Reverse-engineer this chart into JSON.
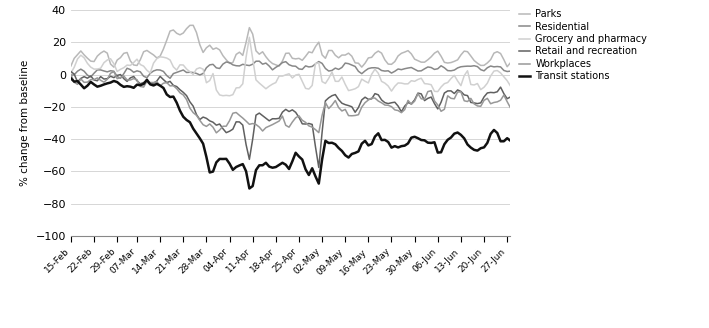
{
  "ylabel": "% change from baseline",
  "ylim": [
    -100,
    40
  ],
  "yticks": [
    -100,
    -80,
    -60,
    -40,
    -20,
    0,
    20,
    40
  ],
  "background_color": "#ffffff",
  "grid_color": "#d0d0d0",
  "series": {
    "Parks": {
      "color": "#b8b8b8",
      "linewidth": 1.1,
      "zorder": 3
    },
    "Residential": {
      "color": "#888888",
      "linewidth": 1.1,
      "zorder": 3
    },
    "Grocery and pharmacy": {
      "color": "#d0d0d0",
      "linewidth": 1.1,
      "zorder": 3
    },
    "Retail and recreation": {
      "color": "#606060",
      "linewidth": 1.1,
      "zorder": 3
    },
    "Workplaces": {
      "color": "#989898",
      "linewidth": 1.1,
      "zorder": 3
    },
    "Transit stations": {
      "color": "#111111",
      "linewidth": 1.8,
      "zorder": 4
    }
  },
  "xtick_labels": [
    "15-Feb",
    "22-Feb",
    "29-Feb",
    "07-Mar",
    "14-Mar",
    "21-Mar",
    "28-Mar",
    "04-Apr",
    "11-Apr",
    "18-Apr",
    "25-Apr",
    "02-May",
    "09-May",
    "16-May",
    "23-May",
    "30-May",
    "06-Jun",
    "13-Jun",
    "20-Jun",
    "27-Jun"
  ],
  "xtick_positions": [
    0,
    7,
    14,
    20,
    27,
    34,
    41,
    48,
    55,
    62,
    69,
    76,
    83,
    90,
    97,
    104,
    111,
    118,
    125,
    132
  ]
}
